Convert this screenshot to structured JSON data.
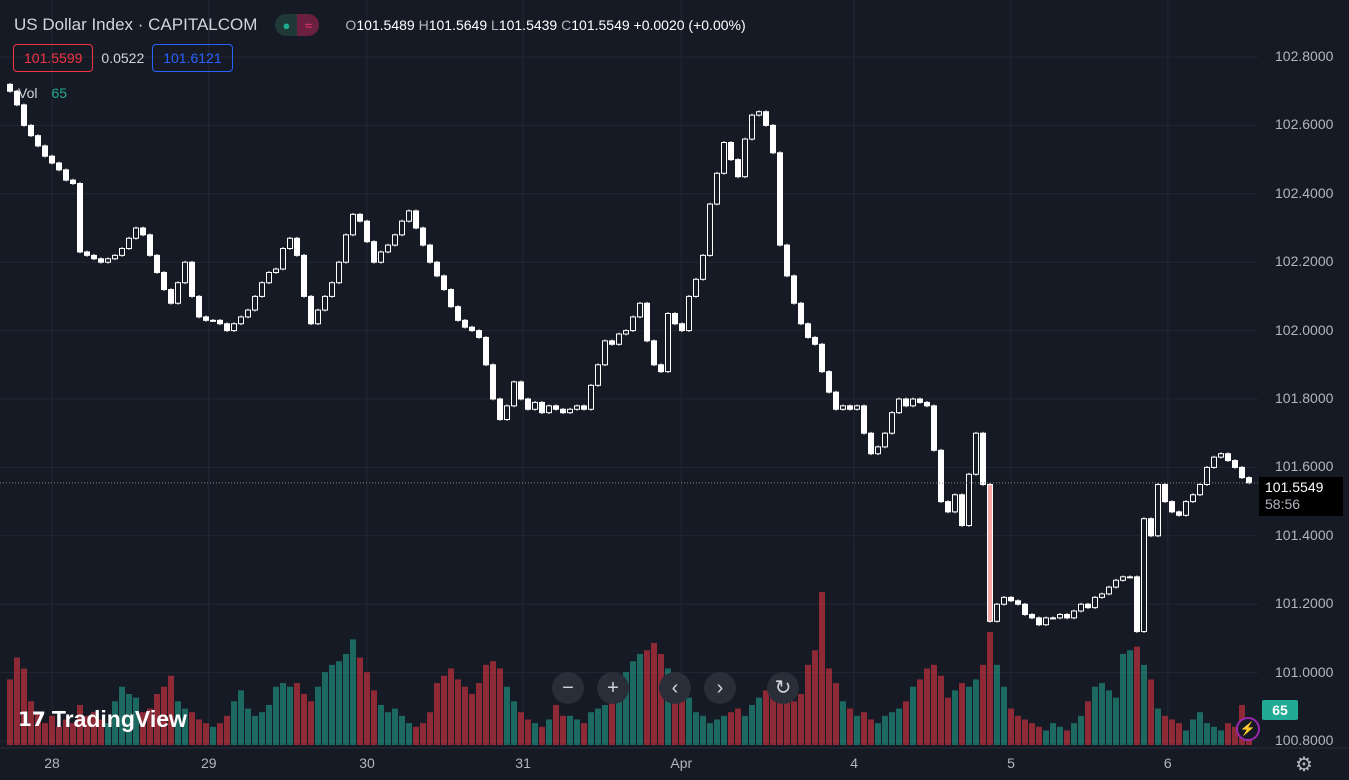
{
  "header": {
    "title": "US Dollar Index · CAPITALCOM",
    "o_label": "O",
    "o": "101.5489",
    "h_label": "H",
    "h": "101.5649",
    "l_label": "L",
    "l": "101.5439",
    "c_label": "C",
    "c": "101.5549",
    "change": "+0.0020 (+0.00%)"
  },
  "trade": {
    "sell": "101.5599",
    "spread": "0.0522",
    "buy": "101.6121"
  },
  "volume_legend": {
    "label": "Vol",
    "value": "65"
  },
  "last_price": {
    "price": "101.5549",
    "countdown": "58:56"
  },
  "volume_badge": "65",
  "nav": {
    "zoom_out": "−",
    "zoom_in": "+",
    "back": "‹",
    "forward": "›",
    "reset": "↻"
  },
  "logo": "TradingView",
  "colors": {
    "bg": "#161a25",
    "up_vol": "#22ab94",
    "down_vol": "#f23645",
    "grid": "#232734"
  },
  "chart_data": {
    "type": "candlestick",
    "ylim": [
      100.8,
      102.8
    ],
    "y_ticks": [
      "102.8000",
      "102.6000",
      "102.4000",
      "102.2000",
      "102.0000",
      "101.8000",
      "101.6000",
      "101.4000",
      "101.2000",
      "101.0000",
      "100.8000"
    ],
    "x_ticks": [
      {
        "label": "28",
        "index": 6
      },
      {
        "label": "29",
        "index": 28.4
      },
      {
        "label": "30",
        "index": 51
      },
      {
        "label": "31",
        "index": 73.3
      },
      {
        "label": "Apr",
        "index": 95.9
      },
      {
        "label": "4",
        "index": 120.6
      },
      {
        "label": "5",
        "index": 143
      },
      {
        "label": "6",
        "index": 165.4
      }
    ],
    "closes": [
      102.7,
      102.66,
      102.6,
      102.57,
      102.54,
      102.51,
      102.49,
      102.47,
      102.44,
      102.43,
      102.23,
      102.22,
      102.21,
      102.2,
      102.21,
      102.22,
      102.24,
      102.27,
      102.3,
      102.28,
      102.22,
      102.17,
      102.12,
      102.08,
      102.14,
      102.2,
      102.1,
      102.04,
      102.03,
      102.03,
      102.02,
      102.0,
      102.02,
      102.04,
      102.06,
      102.1,
      102.14,
      102.17,
      102.18,
      102.24,
      102.27,
      102.22,
      102.1,
      102.02,
      102.06,
      102.1,
      102.14,
      102.2,
      102.28,
      102.34,
      102.32,
      102.26,
      102.2,
      102.23,
      102.25,
      102.28,
      102.32,
      102.35,
      102.3,
      102.25,
      102.2,
      102.16,
      102.12,
      102.07,
      102.03,
      102.01,
      102.0,
      101.98,
      101.9,
      101.8,
      101.74,
      101.78,
      101.85,
      101.8,
      101.77,
      101.79,
      101.76,
      101.78,
      101.77,
      101.76,
      101.77,
      101.78,
      101.77,
      101.84,
      101.9,
      101.97,
      101.96,
      101.99,
      102.0,
      102.04,
      102.08,
      101.97,
      101.9,
      101.88,
      102.05,
      102.02,
      102.0,
      102.1,
      102.15,
      102.22,
      102.37,
      102.46,
      102.55,
      102.5,
      102.45,
      102.56,
      102.63,
      102.64,
      102.6,
      102.52,
      102.25,
      102.16,
      102.08,
      102.02,
      101.98,
      101.96,
      101.88,
      101.82,
      101.77,
      101.78,
      101.77,
      101.78,
      101.7,
      101.64,
      101.66,
      101.7,
      101.76,
      101.8,
      101.78,
      101.8,
      101.79,
      101.78,
      101.65,
      101.5,
      101.47,
      101.52,
      101.43,
      101.58,
      101.7,
      101.55,
      101.15,
      101.2,
      101.22,
      101.21,
      101.2,
      101.17,
      101.16,
      101.14,
      101.16,
      101.16,
      101.17,
      101.16,
      101.18,
      101.2,
      101.19,
      101.22,
      101.23,
      101.25,
      101.27,
      101.28,
      101.28,
      101.12,
      101.45,
      101.4,
      101.55,
      101.5,
      101.47,
      101.46,
      101.5,
      101.52,
      101.55,
      101.6,
      101.63,
      101.64,
      101.62,
      101.6,
      101.57,
      101.555
    ],
    "volumes": [
      180,
      240,
      210,
      120,
      90,
      60,
      80,
      50,
      70,
      60,
      110,
      80,
      90,
      70,
      60,
      120,
      160,
      140,
      130,
      90,
      100,
      140,
      160,
      190,
      120,
      100,
      90,
      70,
      60,
      50,
      60,
      80,
      120,
      150,
      100,
      80,
      90,
      110,
      160,
      170,
      160,
      170,
      140,
      120,
      160,
      200,
      220,
      230,
      250,
      290,
      240,
      200,
      150,
      110,
      90,
      100,
      80,
      60,
      50,
      60,
      90,
      170,
      190,
      210,
      180,
      160,
      140,
      170,
      220,
      230,
      210,
      160,
      120,
      90,
      70,
      60,
      50,
      70,
      110,
      80,
      80,
      70,
      60,
      90,
      100,
      110,
      150,
      160,
      200,
      230,
      250,
      260,
      280,
      250,
      210,
      200,
      150,
      130,
      90,
      80,
      60,
      70,
      80,
      90,
      100,
      80,
      110,
      130,
      150,
      160,
      150,
      130,
      120,
      140,
      220,
      260,
      420,
      210,
      170,
      120,
      100,
      80,
      90,
      70,
      60,
      80,
      90,
      100,
      120,
      160,
      180,
      210,
      220,
      190,
      130,
      150,
      170,
      160,
      180,
      220,
      310,
      220,
      160,
      100,
      80,
      70,
      60,
      50,
      40,
      60,
      50,
      40,
      60,
      80,
      120,
      160,
      170,
      150,
      130,
      250,
      260,
      270,
      220,
      180,
      100,
      80,
      70,
      60,
      40,
      70,
      90,
      60,
      50,
      40,
      60,
      50,
      110,
      65
    ]
  }
}
